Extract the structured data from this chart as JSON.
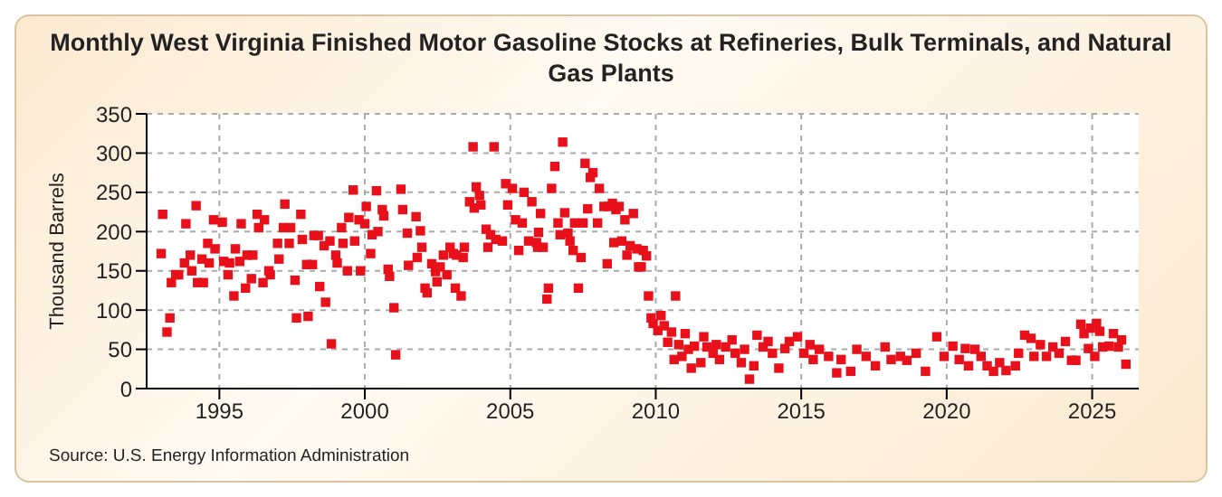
{
  "chart_data": {
    "type": "scatter",
    "title": "Monthly West Virginia Finished Motor Gasoline Stocks at Refineries, Bulk Terminals, and Natural Gas Plants",
    "ylabel": "Thousand Barrels",
    "annotations": [
      "Source: U.S. Energy Information Administration"
    ],
    "xlim": [
      1992.5,
      2026.6
    ],
    "xticks": [
      1995,
      2000,
      2005,
      2010,
      2015,
      2020,
      2025
    ],
    "ylim": [
      0,
      350
    ],
    "yticks": [
      0,
      50,
      100,
      150,
      200,
      250,
      300,
      350
    ],
    "grid": true,
    "marker": "square",
    "series": [
      {
        "color": "#e8101a",
        "x": [
          1993.0,
          1993.05,
          1993.2,
          1993.3,
          1993.35,
          1993.5,
          1993.6,
          1993.8,
          1993.85,
          1994.0,
          1994.05,
          1994.2,
          1994.25,
          1994.4,
          1994.45,
          1994.6,
          1994.65,
          1994.8,
          1994.85,
          1995.1,
          1995.15,
          1995.3,
          1995.35,
          1995.5,
          1995.55,
          1995.7,
          1995.75,
          1995.9,
          1995.95,
          1996.1,
          1996.15,
          1996.3,
          1996.35,
          1996.5,
          1996.55,
          1996.7,
          1996.75,
          1997.0,
          1997.05,
          1997.2,
          1997.25,
          1997.4,
          1997.45,
          1997.6,
          1997.65,
          1997.8,
          1997.85,
          1998.0,
          1998.05,
          1998.2,
          1998.25,
          1998.4,
          1998.45,
          1998.6,
          1998.65,
          1998.8,
          1998.85,
          1999.0,
          1999.05,
          1999.2,
          1999.25,
          1999.4,
          1999.45,
          1999.6,
          1999.65,
          1999.8,
          1999.85,
          2000.0,
          2000.05,
          2000.2,
          2000.25,
          2000.4,
          2000.45,
          2000.6,
          2000.65,
          2000.8,
          2000.85,
          2001.0,
          2001.06,
          2001.24,
          2001.3,
          2001.46,
          2001.5,
          2001.76,
          2001.8,
          2001.91,
          2001.96,
          2002.07,
          2002.14,
          2002.3,
          2002.43,
          2002.48,
          2002.59,
          2002.7,
          2002.82,
          2002.93,
          2003.04,
          2003.11,
          2003.15,
          2003.31,
          2003.38,
          2003.42,
          2003.6,
          2003.72,
          2003.76,
          2003.83,
          2003.94,
          2003.99,
          2004.17,
          2004.23,
          2004.32,
          2004.44,
          2004.5,
          2004.73,
          2004.84,
          2004.91,
          2005.07,
          2005.18,
          2005.29,
          2005.41,
          2005.47,
          2005.63,
          2005.74,
          2005.9,
          2005.94,
          2005.97,
          2006.04,
          2006.13,
          2006.26,
          2006.31,
          2006.42,
          2006.53,
          2006.64,
          2006.71,
          2006.8,
          2006.87,
          2006.98,
          2007.05,
          2007.16,
          2007.21,
          2007.34,
          2007.43,
          2007.5,
          2007.57,
          2007.66,
          2007.75,
          2007.84,
          2008.0,
          2008.06,
          2008.22,
          2008.33,
          2008.37,
          2008.51,
          2008.56,
          2008.63,
          2008.74,
          2008.83,
          2008.94,
          2009.01,
          2009.12,
          2009.23,
          2009.35,
          2009.41,
          2009.5,
          2009.57,
          2009.68,
          2009.75,
          2009.84,
          2009.91,
          2010.07,
          2010.18,
          2010.29,
          2010.41,
          2010.54,
          2010.63,
          2010.68,
          2010.79,
          2010.9,
          2011.01,
          2011.12,
          2011.22,
          2011.33,
          2011.55,
          2011.65,
          2011.76,
          2011.97,
          2012.08,
          2012.19,
          2012.4,
          2012.62,
          2012.73,
          2012.94,
          2013.05,
          2013.22,
          2013.37,
          2013.48,
          2013.69,
          2013.86,
          2014.01,
          2014.23,
          2014.44,
          2014.59,
          2014.87,
          2015.09,
          2015.3,
          2015.41,
          2015.62,
          2015.94,
          2016.22,
          2016.37,
          2016.7,
          2016.91,
          2017.23,
          2017.55,
          2017.88,
          2018.09,
          2018.41,
          2018.63,
          2018.95,
          2019.27,
          2019.66,
          2019.91,
          2020.21,
          2020.43,
          2020.64,
          2020.75,
          2020.97,
          2021.18,
          2021.39,
          2021.61,
          2021.82,
          2022.04,
          2022.36,
          2022.47,
          2022.68,
          2022.9,
          2023.0,
          2023.22,
          2023.43,
          2023.65,
          2023.86,
          2024.08,
          2024.29,
          2024.44,
          2024.61,
          2024.72,
          2024.87,
          2024.94,
          2025.09,
          2025.15,
          2025.26,
          2025.36,
          2025.58,
          2025.73,
          2025.9,
          2026.01,
          2026.16
        ],
        "values": [
          172,
          222,
          72,
          90,
          135,
          145,
          145,
          160,
          210,
          170,
          150,
          233,
          135,
          165,
          135,
          185,
          160,
          215,
          178,
          212,
          162,
          145,
          160,
          118,
          178,
          162,
          210,
          128,
          170,
          140,
          170,
          222,
          205,
          135,
          215,
          150,
          145,
          185,
          165,
          205,
          235,
          185,
          205,
          138,
          90,
          222,
          190,
          158,
          92,
          158,
          195,
          195,
          130,
          182,
          110,
          188,
          57,
          170,
          160,
          205,
          185,
          150,
          218,
          253,
          188,
          215,
          150,
          210,
          232,
          172,
          196,
          252,
          200,
          228,
          220,
          152,
          143,
          103,
          43,
          254,
          228,
          198,
          157,
          219,
          167,
          201,
          180,
          128,
          122,
          159,
          149,
          136,
          155,
          170,
          145,
          180,
          172,
          128,
          170,
          118,
          167,
          180,
          238,
          308,
          230,
          257,
          246,
          234,
          203,
          180,
          196,
          308,
          190,
          188,
          261,
          234,
          255,
          215,
          176,
          211,
          250,
          188,
          238,
          186,
          180,
          199,
          223,
          180,
          114,
          128,
          255,
          283,
          211,
          196,
          314,
          224,
          198,
          188,
          176,
          211,
          128,
          167,
          211,
          287,
          229,
          269,
          275,
          211,
          255,
          232,
          159,
          232,
          236,
          186,
          228,
          232,
          188,
          215,
          170,
          182,
          223,
          178,
          155,
          155,
          176,
          169,
          118,
          90,
          83,
          74,
          93,
          80,
          59,
          72,
          37,
          118,
          56,
          41,
          70,
          50,
          26,
          54,
          33,
          66,
          53,
          45,
          56,
          37,
          53,
          62,
          45,
          33,
          50,
          12,
          29,
          68,
          53,
          60,
          45,
          26,
          51,
          60,
          66,
          45,
          56,
          37,
          50,
          41,
          20,
          37,
          22,
          50,
          41,
          29,
          53,
          37,
          41,
          36,
          45,
          22,
          66,
          41,
          54,
          37,
          51,
          29,
          50,
          41,
          29,
          22,
          33,
          23,
          29,
          45,
          68,
          64,
          41,
          56,
          41,
          53,
          45,
          60,
          36,
          36,
          82,
          70,
          51,
          77,
          41,
          83,
          73,
          53,
          54,
          70,
          53,
          62,
          31
        ]
      }
    ]
  }
}
